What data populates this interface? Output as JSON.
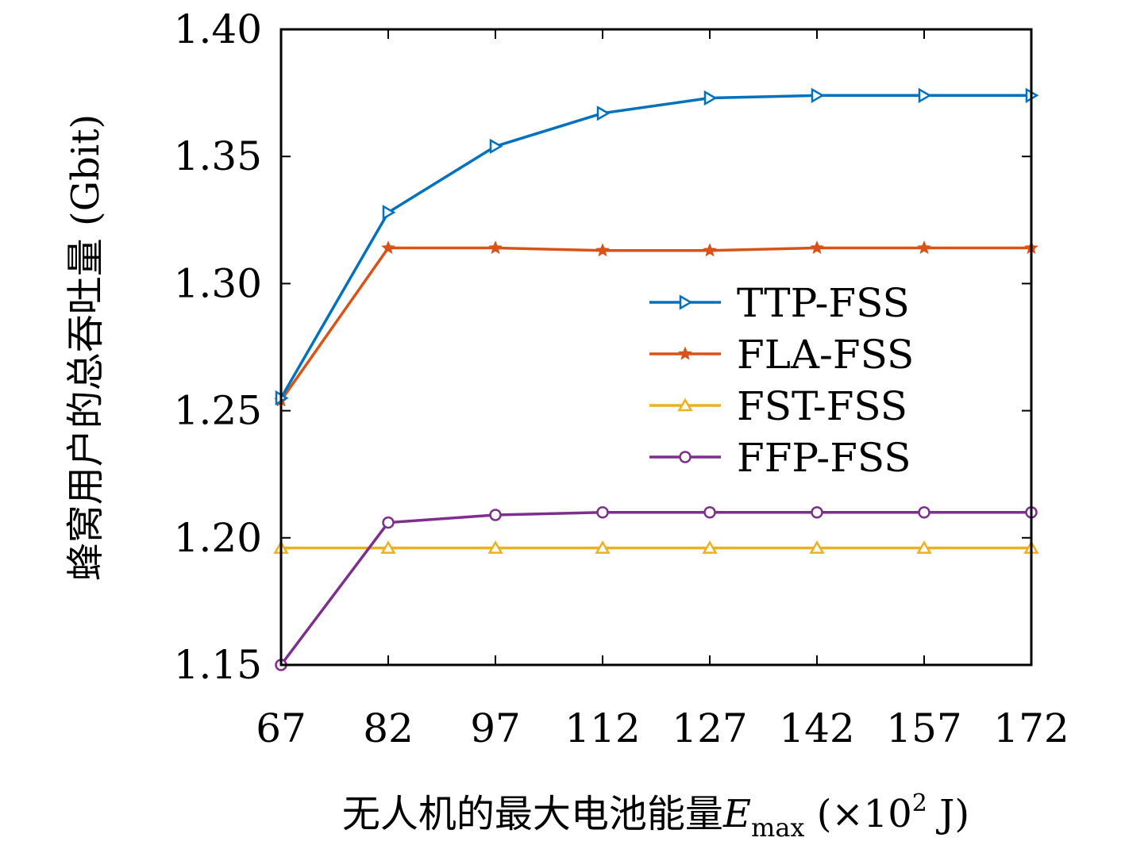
{
  "chart_data": {
    "type": "line",
    "title": "",
    "xlabel": "无人机的最大电池能量",
    "xlabel_symbol": "E",
    "xlabel_subscript": "max",
    "xlabel_unit_open": " (×10",
    "xlabel_unit_exp": "2",
    "xlabel_unit_close": " J)",
    "ylabel": "蜂窝用户的总吞吐量 (Gbit)",
    "x": [
      67,
      82,
      97,
      112,
      127,
      142,
      157,
      172
    ],
    "xtick_labels": [
      "67",
      "82",
      "97",
      "112",
      "127",
      "142",
      "157",
      "172"
    ],
    "ylim": [
      1.15,
      1.4
    ],
    "yticks": [
      1.15,
      1.2,
      1.25,
      1.3,
      1.35,
      1.4
    ],
    "ytick_labels": [
      "1.15",
      "1.20",
      "1.25",
      "1.30",
      "1.35",
      "1.40"
    ],
    "grid": false,
    "legend_position": "center-right",
    "series": [
      {
        "name": "TTP-FSS",
        "color": "#0072bd",
        "marker": "triangle-right",
        "values": [
          1.255,
          1.328,
          1.354,
          1.367,
          1.373,
          1.374,
          1.374,
          1.374
        ]
      },
      {
        "name": "FLA-FSS",
        "color": "#d95319",
        "marker": "star",
        "values": [
          1.254,
          1.314,
          1.314,
          1.313,
          1.313,
          1.314,
          1.314,
          1.314
        ]
      },
      {
        "name": "FST-FSS",
        "color": "#edb120",
        "marker": "triangle-up",
        "values": [
          1.196,
          1.196,
          1.196,
          1.196,
          1.196,
          1.196,
          1.196,
          1.196
        ]
      },
      {
        "name": "FFP-FSS",
        "color": "#7e2f8e",
        "marker": "circle",
        "values": [
          1.15,
          1.206,
          1.209,
          1.21,
          1.21,
          1.21,
          1.21,
          1.21
        ]
      }
    ]
  }
}
